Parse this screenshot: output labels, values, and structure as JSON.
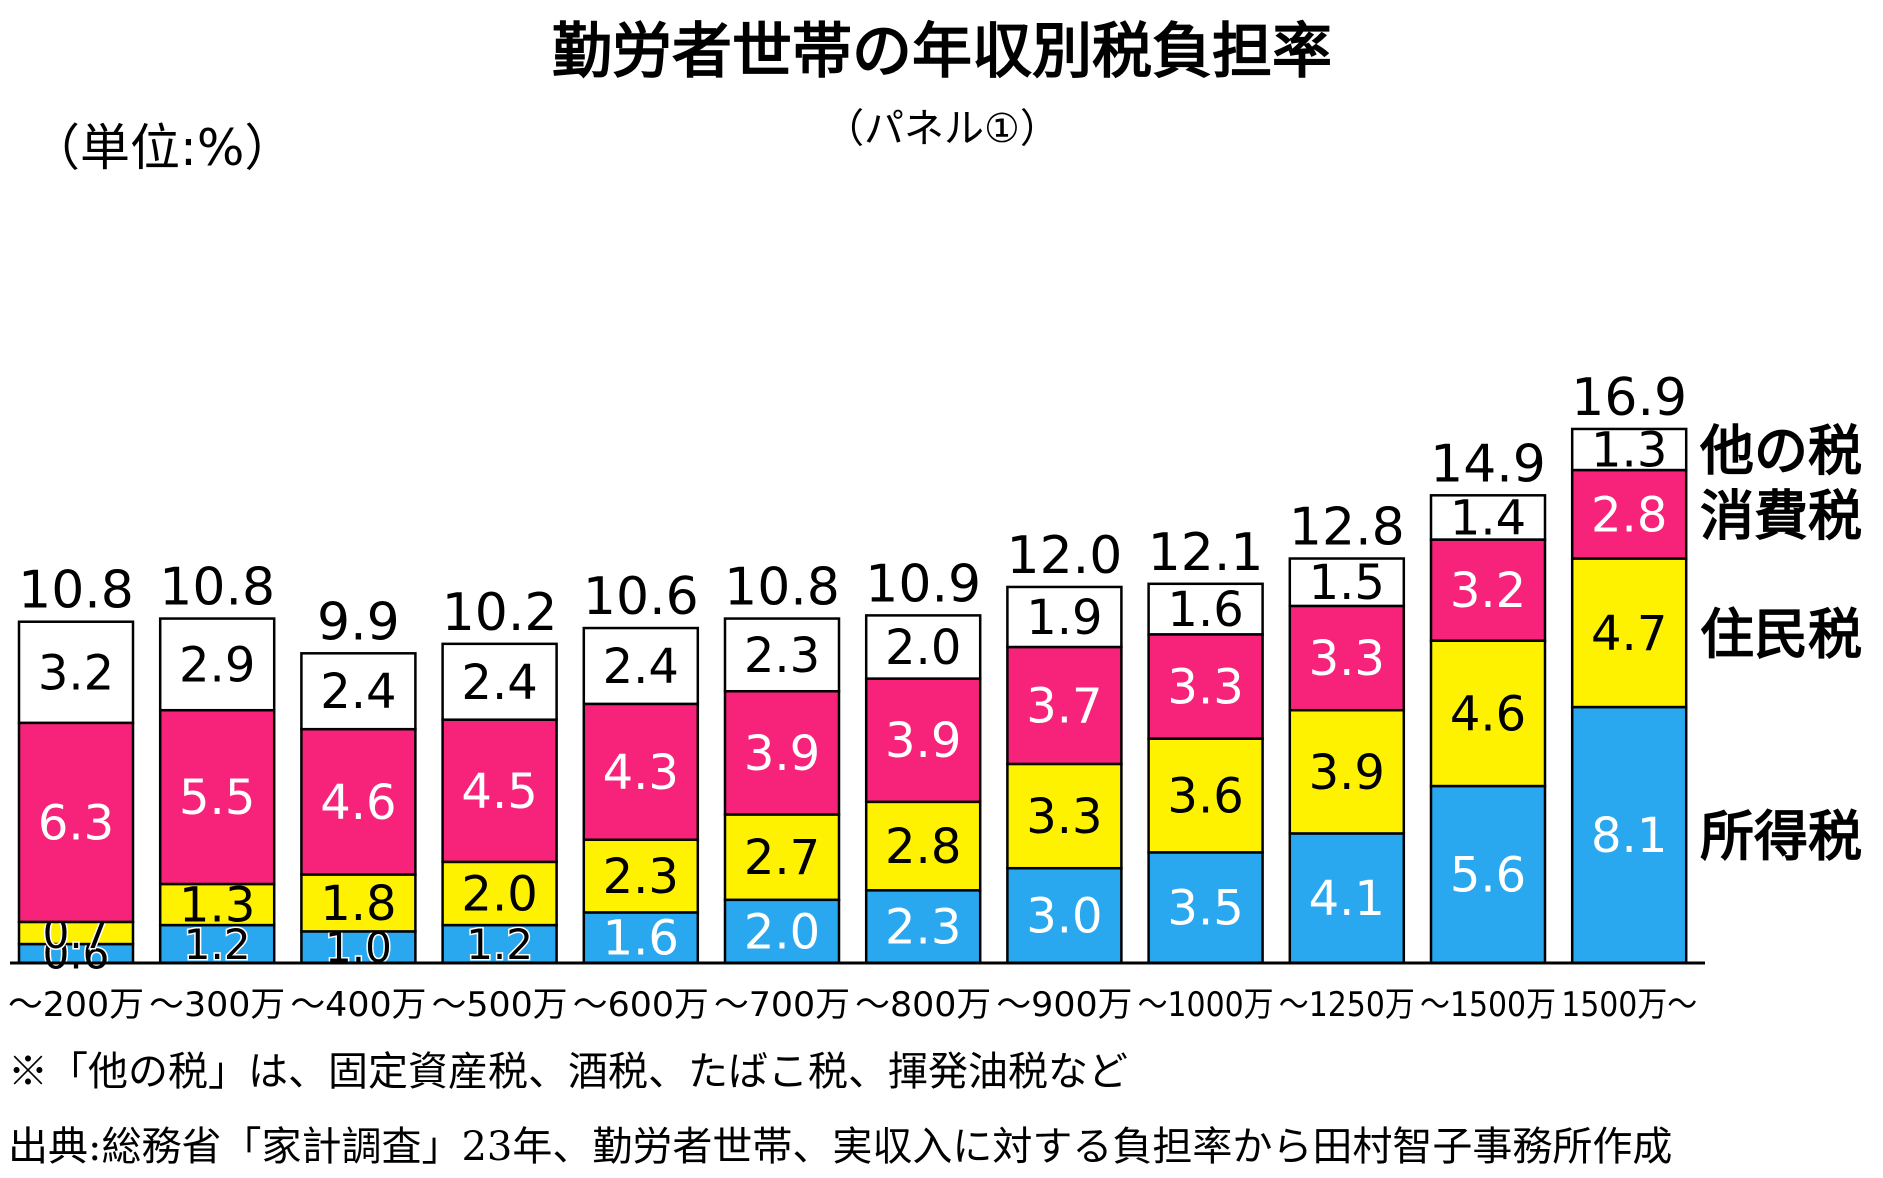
{
  "chart_data": {
    "type": "bar",
    "stacked": true,
    "title": "勤労者世帯の年収別税負担率",
    "subtitle": "（パネル①）",
    "unit_label": "（単位:%）",
    "categories": [
      "～200万",
      "～300万",
      "～400万",
      "～500万",
      "～600万",
      "～700万",
      "～800万",
      "～900万",
      "～1000万",
      "～1250万",
      "～1500万",
      "1500万～"
    ],
    "series": [
      {
        "name": "所得税",
        "color": "#29a8f0",
        "values": [
          0.6,
          1.2,
          1.0,
          1.2,
          1.6,
          2.0,
          2.3,
          3.0,
          3.5,
          4.1,
          5.6,
          8.1
        ],
        "labels": [
          "0.6",
          "1.2",
          "1.0",
          "1.2",
          "1.6",
          "2.0",
          "2.3",
          "3.0",
          "3.5",
          "4.1",
          "5.6",
          "8.1"
        ]
      },
      {
        "name": "住民税",
        "color": "#fff200",
        "values": [
          0.7,
          1.3,
          1.8,
          2.0,
          2.3,
          2.7,
          2.8,
          3.3,
          3.6,
          3.9,
          4.6,
          4.7
        ],
        "labels": [
          "0.7",
          "1.3",
          "1.8",
          "2.0",
          "2.3",
          "2.7",
          "2.8",
          "3.3",
          "3.6",
          "3.9",
          "4.6",
          "4.7"
        ]
      },
      {
        "name": "消費税",
        "color": "#f7237a",
        "values": [
          6.3,
          5.5,
          4.6,
          4.5,
          4.3,
          3.9,
          3.9,
          3.7,
          3.3,
          3.3,
          3.2,
          2.8
        ],
        "labels": [
          "6.3",
          "5.5",
          "4.6",
          "4.5",
          "4.3",
          "3.9",
          "3.9",
          "3.7",
          "3.3",
          "3.3",
          "3.2",
          "2.8"
        ]
      },
      {
        "name": "他の税",
        "color": "#ffffff",
        "values": [
          3.2,
          2.9,
          2.4,
          2.4,
          2.4,
          2.3,
          2.0,
          1.9,
          1.6,
          1.5,
          1.4,
          1.3
        ],
        "labels": [
          "3.2",
          "2.9",
          "2.4",
          "2.4",
          "2.4",
          "2.3",
          "2.0",
          "1.9",
          "1.6",
          "1.5",
          "1.4",
          "1.3"
        ]
      }
    ],
    "totals": [
      10.8,
      10.8,
      9.9,
      10.2,
      10.6,
      10.8,
      10.9,
      12.0,
      12.1,
      12.8,
      14.9,
      16.9
    ],
    "total_labels": [
      "10.8",
      "10.8",
      "9.9",
      "10.2",
      "10.6",
      "10.8",
      "10.9",
      "12.0",
      "12.1",
      "12.8",
      "14.9",
      "16.9"
    ],
    "legend_placement": "right",
    "grid": false
  },
  "notes": {
    "note1": "※「他の税」は、固定資産税、酒税、たばこ税、揮発油税など",
    "source": "出典:総務省「家計調査」23年、勤労者世帯、実収入に対する負担率から田村智子事務所作成"
  }
}
